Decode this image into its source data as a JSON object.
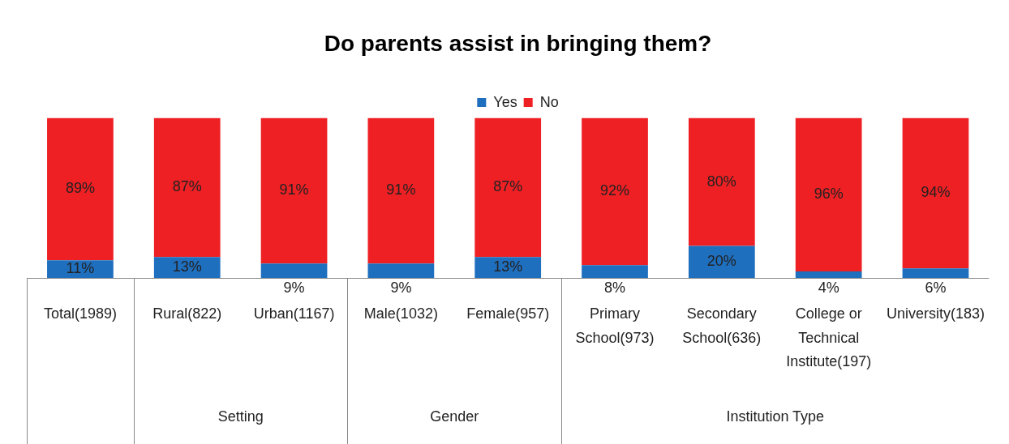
{
  "chart_data": {
    "type": "bar",
    "title": "Do parents assist in bringing them?",
    "stacked": true,
    "legend": "top",
    "tick_labels": "x",
    "grid": false,
    "ylim": [
      0,
      100
    ],
    "categories": [
      "Total(1989)",
      "Rural(822)",
      "Urban(1167)",
      "Male(1032)",
      "Female(957)",
      "Primary School(973)",
      "Secondary School(636)",
      "College or Technical Institute(197)",
      "University(183)"
    ],
    "series": [
      {
        "name": "Yes",
        "color": "#1f6fbf",
        "values": [
          11,
          13,
          9,
          9,
          13,
          8,
          20,
          4,
          6
        ],
        "value_labels": [
          "11%",
          "13%",
          "9%",
          "9%",
          "13%",
          "8%",
          "20%",
          "4%",
          "6%"
        ]
      },
      {
        "name": "No",
        "color": "#ee2024",
        "values": [
          89,
          87,
          91,
          91,
          87,
          92,
          80,
          96,
          94
        ],
        "value_labels": [
          "89%",
          "87%",
          "91%",
          "91%",
          "87%",
          "92%",
          "80%",
          "96%",
          "94%"
        ]
      }
    ],
    "annotations": [
      "Setting",
      "Gender",
      "Institution Type"
    ]
  }
}
